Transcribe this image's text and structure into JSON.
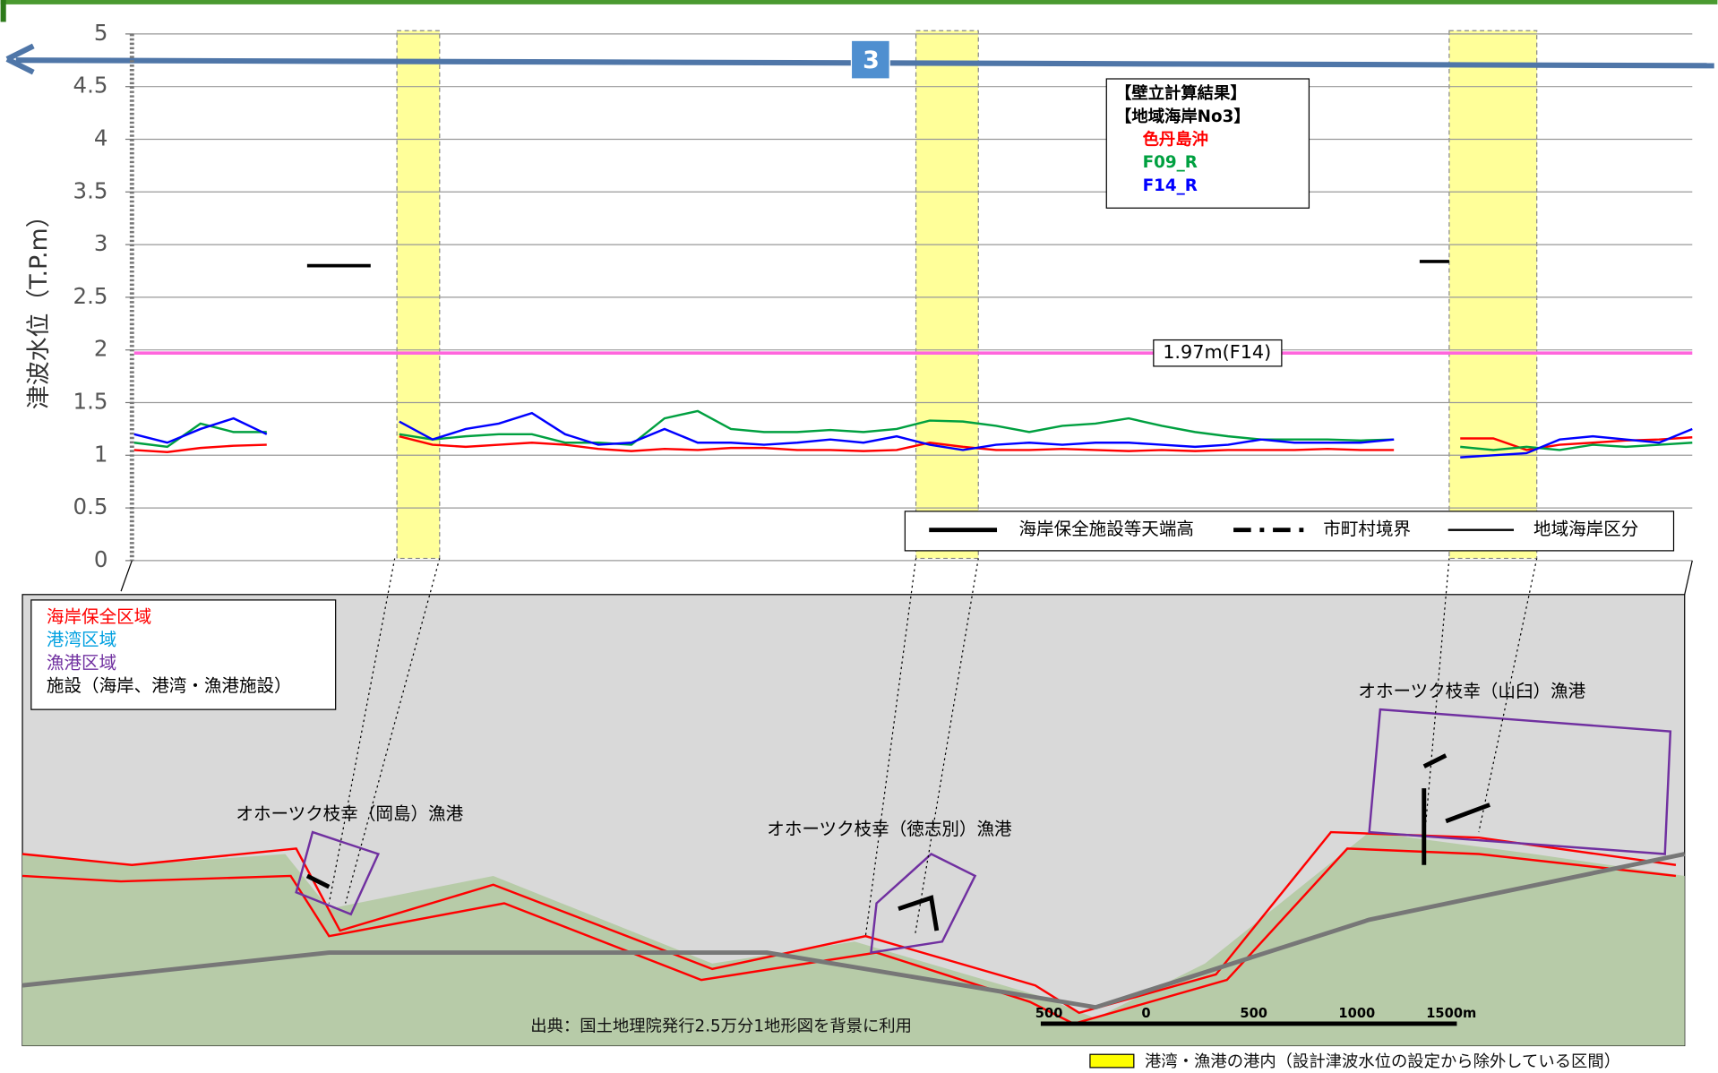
{
  "chart_data": {
    "type": "line",
    "y_label": "津波水位（T.P.m）",
    "ylim": [
      0,
      5
    ],
    "yticks": [
      0,
      0.5,
      1,
      1.5,
      2,
      2.5,
      3,
      3.5,
      4,
      4.5,
      5
    ],
    "grid": true,
    "legend_title": [
      "【壁立計算結果】",
      "【地域海岸No3】"
    ],
    "series": [
      {
        "name": "色丹島沖",
        "color": "#ff0000",
        "values": [
          1.05,
          1.03,
          1.07,
          1.09,
          1.1,
          null,
          null,
          null,
          1.18,
          1.1,
          1.08,
          1.1,
          1.12,
          1.1,
          1.06,
          1.04,
          1.06,
          1.05,
          1.07,
          1.07,
          1.05,
          1.05,
          1.04,
          1.05,
          1.12,
          1.08,
          1.05,
          1.05,
          1.06,
          1.05,
          1.04,
          1.05,
          1.04,
          1.05,
          1.05,
          1.05,
          1.06,
          1.05,
          1.05,
          null,
          1.16,
          1.16,
          1.05,
          1.1,
          1.12,
          1.14,
          1.15,
          1.17
        ]
      },
      {
        "name": "F09_R",
        "color": "#00a040",
        "values": [
          1.12,
          1.08,
          1.3,
          1.22,
          1.22,
          null,
          null,
          null,
          1.2,
          1.15,
          1.18,
          1.2,
          1.2,
          1.12,
          1.12,
          1.1,
          1.35,
          1.42,
          1.25,
          1.22,
          1.22,
          1.24,
          1.22,
          1.25,
          1.33,
          1.32,
          1.28,
          1.22,
          1.28,
          1.3,
          1.35,
          1.28,
          1.22,
          1.18,
          1.15,
          1.15,
          1.15,
          1.14,
          1.15,
          null,
          1.08,
          1.05,
          1.08,
          1.05,
          1.1,
          1.08,
          1.1,
          1.12
        ]
      },
      {
        "name": "F14_R",
        "color": "#0000ff",
        "values": [
          1.2,
          1.12,
          1.25,
          1.35,
          1.2,
          null,
          null,
          null,
          1.32,
          1.15,
          1.25,
          1.3,
          1.4,
          1.2,
          1.1,
          1.12,
          1.25,
          1.12,
          1.12,
          1.1,
          1.12,
          1.15,
          1.12,
          1.18,
          1.1,
          1.05,
          1.1,
          1.12,
          1.1,
          1.12,
          1.12,
          1.1,
          1.08,
          1.1,
          1.15,
          1.12,
          1.12,
          1.12,
          1.15,
          null,
          0.98,
          1.0,
          1.02,
          1.15,
          1.18,
          1.15,
          1.12,
          1.25
        ]
      }
    ],
    "design_level": {
      "value": 1.97,
      "label": "1.97m(F14)",
      "color": "#ff66dd"
    },
    "crest_heights": [
      2.8,
      2.84
    ],
    "line_legend": [
      "海岸保全施設等天端高",
      "市町村境界",
      "地域海岸区分"
    ],
    "section_number": "3"
  },
  "map": {
    "legend": [
      {
        "text": "海岸保全区域",
        "color": "#ff0000"
      },
      {
        "text": "港湾区域",
        "color": "#00a0e0"
      },
      {
        "text": "漁港区域",
        "color": "#7030a0"
      },
      {
        "text": "施設（海岸、港湾・漁港施設）",
        "color": "#000000"
      }
    ],
    "ports": [
      "オホーツク枝幸（岡島）漁港",
      "オホーツク枝幸（徳志別）漁港",
      "オホーツク枝幸（山臼）漁港"
    ],
    "source": "出典：国土地理院発行2.5万分1地形図を背景に利用",
    "scale": [
      "500",
      "0",
      "500",
      "1000",
      "1500m"
    ]
  },
  "footer": "港湾・漁港の港内（設計津波水位の設定から除外している区間）"
}
